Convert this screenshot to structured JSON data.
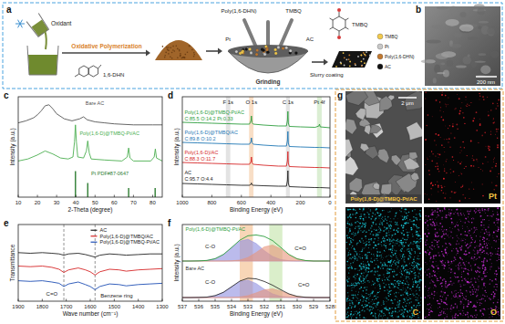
{
  "panel_labels": [
    "a",
    "b",
    "c",
    "d",
    "e",
    "f",
    "g"
  ],
  "schematic": {
    "oxidant": "Oxidant",
    "step1": "Oxidative Polymerization",
    "monomer": "1,6-DHN",
    "polymer": "Poly(1,6-DHN)",
    "tmbq": "TMBQ",
    "pt": "Pt",
    "ac": "AC",
    "step2": "Grinding",
    "step3": "Slurry coating",
    "legend": [
      {
        "label": "TMBQ",
        "color": "#f2c94c"
      },
      {
        "label": "Pt",
        "color": "#c8c8c8"
      },
      {
        "label": "Poly(1,6-DHN)",
        "color": "#c0782f"
      },
      {
        "label": "AC",
        "color": "#111111"
      }
    ]
  },
  "images": {
    "b": {
      "scale_bar": "200 nm"
    },
    "g": {
      "sem_label": "Poly(1,6-D)@TMBQ-Pt/AC",
      "scale_bar": "2 μm",
      "maps": [
        {
          "label": "Pt",
          "color": "#e0222b"
        },
        {
          "label": "C",
          "color": "#19c6d6"
        },
        {
          "label": "O",
          "color": "#c42ed1"
        }
      ]
    }
  },
  "chart_data": [
    {
      "type": "line",
      "x_label": "2-Theta (degree)",
      "y_label": "Intensity (a.u.)",
      "xlim": [
        10,
        85
      ],
      "ylim": [
        0,
        10
      ],
      "xticks": [
        10,
        20,
        30,
        40,
        50,
        60,
        70,
        80
      ],
      "tick_labels": "x",
      "series": [
        {
          "name": "Bare AC",
          "color": "#555555",
          "label_x": 45,
          "label_y": 9.2,
          "x": [
            10,
            14,
            18,
            20,
            22,
            24,
            26,
            28,
            30,
            34,
            38,
            42,
            44,
            46,
            50,
            55,
            60,
            70,
            80,
            85
          ],
          "values": [
            7.4,
            7.6,
            7.9,
            8.2,
            8.6,
            9.1,
            9.2,
            8.8,
            8.3,
            7.8,
            7.6,
            7.8,
            8.0,
            7.7,
            7.5,
            7.4,
            7.3,
            7.2,
            7.2,
            7.2
          ]
        },
        {
          "name": "Poly(1,6-D)@TMBQ-Pt/AC",
          "color": "#4caf50",
          "label_x": 42,
          "label_y": 6.2,
          "x": [
            10,
            15,
            20,
            24,
            28,
            32,
            36,
            38.5,
            39.3,
            39.8,
            40.3,
            41,
            44,
            45.5,
            46.2,
            47,
            48,
            55,
            64,
            66.8,
            67.5,
            68.2,
            70,
            79,
            80.8,
            81.4,
            82,
            85
          ],
          "values": [
            3.6,
            3.8,
            4.2,
            4.6,
            4.3,
            3.9,
            3.8,
            4.0,
            5.5,
            7.2,
            5.5,
            4.0,
            3.9,
            4.6,
            5.6,
            4.4,
            3.8,
            3.7,
            3.6,
            4.0,
            4.9,
            3.9,
            3.6,
            3.6,
            4.0,
            4.8,
            3.9,
            3.6
          ]
        },
        {
          "name": "Pt PDF#87-0647",
          "type": "stem",
          "color": "#2e7d32",
          "label_x": 48,
          "label_y": 2.2,
          "x": [
            39.8,
            46.2,
            67.5,
            81.3
          ],
          "values": [
            2.6,
            1.4,
            0.9,
            0.9
          ]
        }
      ]
    },
    {
      "type": "line",
      "x_label": "Binding Energy (eV)",
      "y_label": "Intensity (a.u.)",
      "xlim": [
        1000,
        0
      ],
      "ylim": [
        0,
        11
      ],
      "xticks": [
        1000,
        800,
        600,
        400,
        200,
        0
      ],
      "tick_labels": "x",
      "bands": [
        {
          "from": 705,
          "to": 675,
          "color": "#d9d9d9"
        },
        {
          "from": 548,
          "to": 518,
          "color": "#f6d3b3"
        },
        {
          "from": 298,
          "to": 272,
          "color": "#d9d9d9"
        },
        {
          "from": 88,
          "to": 56,
          "color": "#cfe8c4"
        }
      ],
      "annotations": [
        {
          "text": "F 1s",
          "x": 690,
          "y": 10.2
        },
        {
          "text": "O 1s",
          "x": 532,
          "y": 10.2
        },
        {
          "text": "C 1s",
          "x": 285,
          "y": 10.2
        },
        {
          "text": "Pt 4f",
          "x": 72,
          "y": 10.2
        }
      ],
      "series": [
        {
          "name": "AC",
          "composition": "C:95.7 O:4.4",
          "color": "#222222",
          "label_x": 985,
          "label_y": 2.5,
          "x": [
            1000,
            900,
            800,
            700,
            600,
            545,
            535,
            532,
            528,
            520,
            450,
            350,
            295,
            288,
            285,
            282,
            275,
            200,
            100,
            75,
            71,
            66,
            0
          ],
          "values": [
            1.5,
            1.45,
            1.4,
            1.35,
            1.3,
            1.3,
            1.4,
            1.55,
            1.35,
            1.3,
            1.25,
            1.2,
            1.2,
            1.8,
            2.9,
            1.5,
            1.15,
            1.1,
            1.05,
            1.05,
            1.05,
            1.05,
            1.0
          ]
        },
        {
          "name": "Poly(1,6-D)/AC",
          "composition": "C:88.3 O:11.7",
          "color": "#d62728",
          "label_x": 985,
          "label_y": 4.7,
          "x": [
            1000,
            900,
            800,
            700,
            600,
            545,
            535,
            532,
            528,
            520,
            450,
            350,
            295,
            288,
            285,
            282,
            275,
            200,
            100,
            75,
            71,
            66,
            0
          ],
          "values": [
            3.8,
            3.75,
            3.7,
            3.65,
            3.6,
            3.6,
            3.9,
            4.4,
            3.75,
            3.6,
            3.5,
            3.4,
            3.4,
            4.0,
            5.0,
            3.7,
            3.35,
            3.3,
            3.25,
            3.25,
            3.25,
            3.25,
            3.2
          ]
        },
        {
          "name": "Poly(1,6-D)@TMBQ/AC",
          "composition": "C:89.8 O:10.2",
          "color": "#1f77b4",
          "label_x": 985,
          "label_y": 6.9,
          "x": [
            1000,
            900,
            800,
            700,
            600,
            545,
            535,
            532,
            528,
            520,
            450,
            350,
            295,
            288,
            285,
            282,
            275,
            200,
            100,
            75,
            71,
            66,
            0
          ],
          "values": [
            6.0,
            5.95,
            5.9,
            5.85,
            5.8,
            5.8,
            6.1,
            6.5,
            5.95,
            5.8,
            5.7,
            5.6,
            5.6,
            6.2,
            7.2,
            5.9,
            5.55,
            5.5,
            5.45,
            5.45,
            5.45,
            5.45,
            5.4
          ]
        },
        {
          "name": "Poly(1,6-D)@TMBQ-Pt/AC",
          "composition": "C:85.5 O:14.2 Pt:0.33",
          "color": "#2e9e3e",
          "label_x": 985,
          "label_y": 9.1,
          "x": [
            1000,
            900,
            800,
            700,
            600,
            545,
            535,
            532,
            528,
            520,
            450,
            350,
            295,
            288,
            285,
            282,
            275,
            200,
            100,
            75,
            71,
            66,
            0
          ],
          "values": [
            8.2,
            8.15,
            8.1,
            8.05,
            8.0,
            8.0,
            8.4,
            8.9,
            8.15,
            8.0,
            7.9,
            7.8,
            7.8,
            8.4,
            9.4,
            8.1,
            7.75,
            7.7,
            7.65,
            7.8,
            8.0,
            7.7,
            7.6
          ]
        }
      ]
    },
    {
      "type": "line",
      "x_label": "Wave number (cm⁻¹)",
      "y_label": "Transmittance",
      "xlim": [
        1900,
        1300
      ],
      "ylim": [
        0,
        12
      ],
      "xticks": [
        1900,
        1800,
        1700,
        1600,
        1500,
        1400,
        1300
      ],
      "tick_labels": "x",
      "legend": "upper right",
      "reference_lines": [
        1710,
        1580
      ],
      "annotations": [
        {
          "text": "C=O",
          "x": 1760,
          "y": 0.8
        },
        {
          "text": "Benzene ring",
          "x": 1490,
          "y": 0.6
        }
      ],
      "series": [
        {
          "name": "AC",
          "color": "#222222",
          "x": [
            1900,
            1850,
            1800,
            1760,
            1730,
            1710,
            1690,
            1650,
            1620,
            1600,
            1580,
            1560,
            1520,
            1480,
            1450,
            1400,
            1350,
            1300
          ],
          "values": [
            7.6,
            7.5,
            7.6,
            7.5,
            7.4,
            7.2,
            7.4,
            7.5,
            7.3,
            7.1,
            6.9,
            7.2,
            7.4,
            7.3,
            7.2,
            7.3,
            7.4,
            7.4
          ]
        },
        {
          "name": "Poly(1,6-D)@TMBQ/AC",
          "color": "#d62728",
          "x": [
            1900,
            1850,
            1800,
            1760,
            1730,
            1710,
            1690,
            1650,
            1620,
            1600,
            1580,
            1560,
            1520,
            1480,
            1450,
            1400,
            1350,
            1300
          ],
          "values": [
            5.5,
            5.4,
            5.5,
            5.3,
            5.0,
            4.5,
            4.9,
            5.2,
            4.9,
            4.6,
            4.1,
            4.6,
            5.0,
            4.9,
            4.7,
            4.9,
            5.0,
            5.1
          ]
        },
        {
          "name": "Poly(1,6-D)@TMBQ-Pt/AC",
          "color": "#1f4fb4",
          "x": [
            1900,
            1850,
            1800,
            1760,
            1730,
            1710,
            1690,
            1650,
            1620,
            1600,
            1580,
            1560,
            1520,
            1480,
            1450,
            1400,
            1350,
            1300
          ],
          "values": [
            3.2,
            3.1,
            3.2,
            3.0,
            2.8,
            2.3,
            2.7,
            3.0,
            2.6,
            2.3,
            1.8,
            2.3,
            2.7,
            2.6,
            2.4,
            2.6,
            2.7,
            2.8
          ]
        }
      ]
    },
    {
      "type": "line",
      "x_label": "Binding Energy (eV)",
      "y_label": "Intensity (a.u.)",
      "xlim": [
        537,
        528
      ],
      "ylim": [
        0,
        10.5
      ],
      "xticks": [
        537,
        536,
        535,
        534,
        533,
        532,
        531,
        530,
        529,
        528
      ],
      "tick_labels": "x",
      "bands": [
        {
          "from": 533.5,
          "to": 532.7,
          "color": "#f6c89f"
        },
        {
          "from": 531.7,
          "to": 530.9,
          "color": "#cde8b8"
        }
      ],
      "annotations": [
        {
          "text": "C-O",
          "x": 535.3,
          "y": 7.2
        },
        {
          "text": "C=O",
          "x": 529.8,
          "y": 7.0
        },
        {
          "text": "C-O",
          "x": 535.3,
          "y": 2.4
        },
        {
          "text": "C=O",
          "x": 529.6,
          "y": 2.0
        }
      ],
      "series": [
        {
          "type": "area",
          "color": "#8e8ee0",
          "baseline": 5.5,
          "x": [
            537,
            536.5,
            536,
            535.5,
            535,
            534.5,
            534,
            533.5,
            533,
            532.5,
            532,
            531.5,
            531,
            530.5,
            530,
            529.5,
            529,
            528.5,
            528
          ],
          "values": [
            5.5,
            5.5,
            5.52,
            5.58,
            5.82,
            6.39,
            7.32,
            8.22,
            8.48,
            7.9,
            6.92,
            6.12,
            5.7,
            5.55,
            5.5,
            5.5,
            5.5,
            5.5,
            5.5
          ]
        },
        {
          "type": "area",
          "color": "#e8957a",
          "baseline": 5.5,
          "x": [
            537,
            536.5,
            536,
            535.5,
            535,
            534.5,
            534,
            533.5,
            533,
            532.5,
            532,
            531.5,
            531,
            530.5,
            530,
            529.5,
            529,
            528.5,
            528
          ],
          "values": [
            5.5,
            5.5,
            5.5,
            5.5,
            5.5,
            5.5,
            5.52,
            5.63,
            5.98,
            6.67,
            7.44,
            7.68,
            7.16,
            6.35,
            5.8,
            5.57,
            5.5,
            5.5,
            5.5
          ]
        },
        {
          "name": "Poly(1,6-D)@TMBQ-Pt/AC",
          "color": "#2e9e3e",
          "label_x": 536.8,
          "label_y": 9.6,
          "x": [
            537,
            536.5,
            536,
            535.5,
            535,
            534.5,
            534,
            533.5,
            533,
            532.5,
            532,
            531.5,
            531,
            530.5,
            530,
            529.5,
            529,
            528.5,
            528
          ],
          "values": [
            5.5,
            5.5,
            5.52,
            5.58,
            5.82,
            6.39,
            7.34,
            8.35,
            8.96,
            9.07,
            8.86,
            8.3,
            7.36,
            6.4,
            5.8,
            5.57,
            5.5,
            5.5,
            5.5
          ]
        },
        {
          "type": "area",
          "color": "#8e8ee0",
          "baseline": 0.5,
          "x": [
            537,
            536.5,
            536,
            535.5,
            535,
            534.5,
            534,
            533.5,
            533,
            532.5,
            532,
            531.5,
            531,
            530.5,
            530,
            529.5,
            529,
            528.5,
            528
          ],
          "values": [
            0.5,
            0.5,
            0.52,
            0.56,
            0.76,
            1.21,
            1.96,
            2.68,
            2.88,
            2.42,
            1.64,
            1.0,
            0.66,
            0.54,
            0.5,
            0.5,
            0.5,
            0.5,
            0.5
          ]
        },
        {
          "type": "area",
          "color": "#e8957a",
          "baseline": 0.5,
          "x": [
            537,
            536.5,
            536,
            535.5,
            535,
            534.5,
            534,
            533.5,
            533,
            532.5,
            532,
            531.5,
            531,
            530.5,
            530,
            529.5,
            529,
            528.5,
            528
          ],
          "values": [
            0.5,
            0.5,
            0.5,
            0.5,
            0.5,
            0.5,
            0.51,
            0.57,
            0.76,
            1.14,
            1.56,
            1.69,
            1.41,
            0.96,
            0.66,
            0.54,
            0.5,
            0.5,
            0.5
          ]
        },
        {
          "name": "Bare AC",
          "color": "#333333",
          "label_x": 536.8,
          "label_y": 4.3,
          "x": [
            537,
            536.5,
            536,
            535.5,
            535,
            534.5,
            534,
            533.5,
            533,
            532.5,
            532,
            531.5,
            531,
            530.5,
            530,
            529.5,
            529,
            528.5,
            528
          ],
          "values": [
            0.5,
            0.5,
            0.52,
            0.56,
            0.76,
            1.21,
            1.97,
            2.75,
            3.14,
            3.06,
            2.7,
            2.19,
            1.57,
            1.0,
            0.66,
            0.54,
            0.5,
            0.5,
            0.5
          ]
        }
      ]
    }
  ]
}
